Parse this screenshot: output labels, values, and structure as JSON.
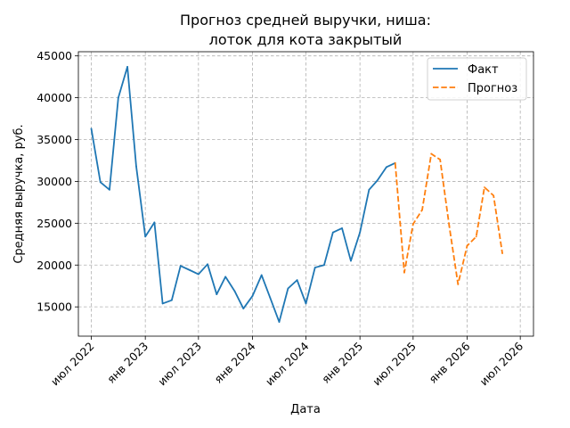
{
  "chart_data": {
    "type": "line",
    "title": [
      "Прогноз средней выручки, ниша:",
      "лоток для кота закрытый"
    ],
    "xlabel": "Дата",
    "ylabel": "Средняя выручка, руб.",
    "xlim": [
      "2022-05-18",
      "2026-08-15"
    ],
    "ylim": [
      11500,
      45500
    ],
    "x_ticks": [
      {
        "date": "2022-07-01",
        "label": "июл 2022"
      },
      {
        "date": "2023-01-01",
        "label": "янв 2023"
      },
      {
        "date": "2023-07-01",
        "label": "июл 2023"
      },
      {
        "date": "2024-01-01",
        "label": "янв 2024"
      },
      {
        "date": "2024-07-01",
        "label": "июл 2024"
      },
      {
        "date": "2025-01-01",
        "label": "янв 2025"
      },
      {
        "date": "2025-07-01",
        "label": "июл 2025"
      },
      {
        "date": "2026-01-01",
        "label": "янв 2026"
      },
      {
        "date": "2026-07-01",
        "label": "июл 2026"
      }
    ],
    "y_ticks": [
      {
        "value": 15000,
        "label": "15000"
      },
      {
        "value": 20000,
        "label": "20000"
      },
      {
        "value": 25000,
        "label": "25000"
      },
      {
        "value": 30000,
        "label": "30000"
      },
      {
        "value": 35000,
        "label": "35000"
      },
      {
        "value": 40000,
        "label": "40000"
      },
      {
        "value": 45000,
        "label": "45000"
      }
    ],
    "grid": true,
    "legend_position": "top-right",
    "series": [
      {
        "name": "Факт",
        "color": "#1f77b4",
        "style": "solid",
        "points": [
          {
            "x": "2022-07-01",
            "y": 36300
          },
          {
            "x": "2022-08-01",
            "y": 29900
          },
          {
            "x": "2022-09-01",
            "y": 29000
          },
          {
            "x": "2022-10-01",
            "y": 40000
          },
          {
            "x": "2022-11-01",
            "y": 43700
          },
          {
            "x": "2022-12-01",
            "y": 31800
          },
          {
            "x": "2023-01-01",
            "y": 23400
          },
          {
            "x": "2023-02-01",
            "y": 25100
          },
          {
            "x": "2023-03-01",
            "y": 15400
          },
          {
            "x": "2023-04-01",
            "y": 15800
          },
          {
            "x": "2023-05-01",
            "y": 19900
          },
          {
            "x": "2023-06-01",
            "y": 19400
          },
          {
            "x": "2023-07-01",
            "y": 18900
          },
          {
            "x": "2023-08-01",
            "y": 20100
          },
          {
            "x": "2023-09-01",
            "y": 16500
          },
          {
            "x": "2023-10-01",
            "y": 18600
          },
          {
            "x": "2023-11-01",
            "y": 16900
          },
          {
            "x": "2023-12-01",
            "y": 14800
          },
          {
            "x": "2024-01-01",
            "y": 16300
          },
          {
            "x": "2024-02-01",
            "y": 18800
          },
          {
            "x": "2024-03-01",
            "y": 16100
          },
          {
            "x": "2024-04-01",
            "y": 13200
          },
          {
            "x": "2024-05-01",
            "y": 17200
          },
          {
            "x": "2024-06-01",
            "y": 18200
          },
          {
            "x": "2024-07-01",
            "y": 15400
          },
          {
            "x": "2024-08-01",
            "y": 19700
          },
          {
            "x": "2024-09-01",
            "y": 20000
          },
          {
            "x": "2024-10-01",
            "y": 23900
          },
          {
            "x": "2024-11-01",
            "y": 24400
          },
          {
            "x": "2024-12-01",
            "y": 20500
          },
          {
            "x": "2025-01-01",
            "y": 23900
          },
          {
            "x": "2025-02-01",
            "y": 29000
          },
          {
            "x": "2025-03-01",
            "y": 30100
          },
          {
            "x": "2025-04-01",
            "y": 31700
          },
          {
            "x": "2025-05-01",
            "y": 32200
          }
        ]
      },
      {
        "name": "Прогноз",
        "color": "#ff7f0e",
        "style": "dashed",
        "points": [
          {
            "x": "2025-05-01",
            "y": 32200
          },
          {
            "x": "2025-06-01",
            "y": 19100
          },
          {
            "x": "2025-07-01",
            "y": 24900
          },
          {
            "x": "2025-08-01",
            "y": 26600
          },
          {
            "x": "2025-09-01",
            "y": 33300
          },
          {
            "x": "2025-10-01",
            "y": 32600
          },
          {
            "x": "2025-11-01",
            "y": 24700
          },
          {
            "x": "2025-12-01",
            "y": 17700
          },
          {
            "x": "2026-01-01",
            "y": 22300
          },
          {
            "x": "2026-02-01",
            "y": 23400
          },
          {
            "x": "2026-03-01",
            "y": 29300
          },
          {
            "x": "2026-04-01",
            "y": 28300
          },
          {
            "x": "2026-05-01",
            "y": 21400
          }
        ]
      }
    ]
  }
}
